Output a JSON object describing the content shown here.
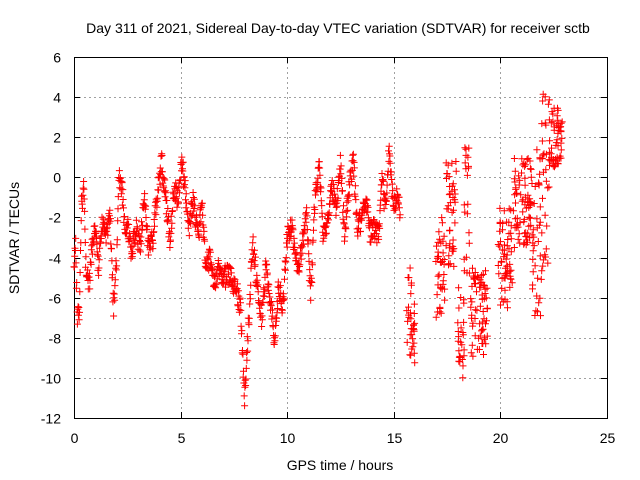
{
  "chart_data": {
    "type": "scatter",
    "title": "Day 311 of 2021, Sidereal Day-to-day VTEC variation (SDTVAR) for receiver sctb",
    "xlabel": "GPS time / hours",
    "ylabel": "SDTVAR / TECUs",
    "xlim": [
      0,
      25
    ],
    "ylim": [
      -12,
      6
    ],
    "xticks": [
      0,
      5,
      10,
      15,
      20,
      25
    ],
    "yticks": [
      -12,
      -10,
      -8,
      -6,
      -4,
      -2,
      0,
      2,
      4,
      6
    ],
    "grid": true,
    "marker": "+",
    "color": "#ff0000",
    "series": [
      {
        "name": "SDTVAR",
        "keyframes": [
          [
            0.0,
            -4.8
          ],
          [
            0.08,
            -3.5
          ],
          [
            0.15,
            -6.8
          ],
          [
            0.25,
            -7.0
          ],
          [
            0.35,
            -1.5
          ],
          [
            0.45,
            -0.5
          ],
          [
            0.55,
            -4.2
          ],
          [
            0.7,
            -5.5
          ],
          [
            0.85,
            -3.5
          ],
          [
            1.0,
            -2.5
          ],
          [
            1.15,
            -4.5
          ],
          [
            1.3,
            -2.2
          ],
          [
            1.5,
            -3.0
          ],
          [
            1.7,
            -2.0
          ],
          [
            1.85,
            -6.5
          ],
          [
            2.0,
            -4.0
          ],
          [
            2.1,
            0.2
          ],
          [
            2.25,
            -0.5
          ],
          [
            2.4,
            -3.0
          ],
          [
            2.55,
            -2.5
          ],
          [
            2.7,
            -3.8
          ],
          [
            2.9,
            -2.5
          ],
          [
            3.1,
            -3.5
          ],
          [
            3.3,
            -1.2
          ],
          [
            3.5,
            -3.5
          ],
          [
            3.7,
            -3.0
          ],
          [
            3.9,
            -1.0
          ],
          [
            4.1,
            0.8
          ],
          [
            4.3,
            -1.0
          ],
          [
            4.5,
            -3.0
          ],
          [
            4.7,
            -0.5
          ],
          [
            4.9,
            -1.2
          ],
          [
            5.05,
            0.9
          ],
          [
            5.2,
            -0.5
          ],
          [
            5.4,
            -2.5
          ],
          [
            5.6,
            -1.0
          ],
          [
            5.8,
            -3.0
          ],
          [
            6.0,
            -1.5
          ],
          [
            6.2,
            -4.5
          ],
          [
            6.4,
            -4.0
          ],
          [
            6.6,
            -5.5
          ],
          [
            6.8,
            -4.5
          ],
          [
            7.0,
            -5.0
          ],
          [
            7.3,
            -4.8
          ],
          [
            7.6,
            -5.5
          ],
          [
            7.8,
            -6.5
          ],
          [
            8.0,
            -11.0
          ],
          [
            8.1,
            -9.0
          ],
          [
            8.25,
            -6.0
          ],
          [
            8.4,
            -3.2
          ],
          [
            8.6,
            -5.5
          ],
          [
            8.8,
            -7.0
          ],
          [
            9.0,
            -4.5
          ],
          [
            9.2,
            -6.0
          ],
          [
            9.4,
            -8.0
          ],
          [
            9.6,
            -5.5
          ],
          [
            9.8,
            -6.5
          ],
          [
            10.0,
            -3.0
          ],
          [
            10.2,
            -2.5
          ],
          [
            10.5,
            -4.5
          ],
          [
            10.7,
            -3.5
          ],
          [
            10.9,
            -1.5
          ],
          [
            11.1,
            -6.0
          ],
          [
            11.3,
            -1.0
          ],
          [
            11.5,
            0.5
          ],
          [
            11.7,
            -3.0
          ],
          [
            11.9,
            -2.0
          ],
          [
            12.1,
            -0.5
          ],
          [
            12.3,
            -1.5
          ],
          [
            12.5,
            0.8
          ],
          [
            12.7,
            -3.0
          ],
          [
            12.9,
            -0.5
          ],
          [
            13.1,
            0.8
          ],
          [
            13.3,
            -2.5
          ],
          [
            13.5,
            -2.0
          ],
          [
            13.7,
            -1.0
          ],
          [
            13.9,
            -2.8
          ],
          [
            14.1,
            -2.5
          ],
          [
            14.3,
            -3.0
          ],
          [
            14.45,
            -0.2
          ],
          [
            14.6,
            -1.5
          ],
          [
            14.8,
            1.5
          ],
          [
            14.9,
            -0.5
          ],
          [
            15.0,
            -1.5
          ],
          [
            15.2,
            -0.8
          ],
          [
            15.3,
            -2.0
          ]
        ],
        "gaps": [
          [
            15.35,
            15.55
          ],
          [
            16.4,
            16.9
          ],
          [
            19.45,
            19.9
          ]
        ],
        "clusters": [
          {
            "x": [
              15.6,
              16.0
            ],
            "y": [
              -9.5,
              -4.5
            ]
          },
          {
            "x": [
              16.95,
              17.4
            ],
            "y": [
              -7.0,
              -2.0
            ]
          },
          {
            "x": [
              17.45,
              17.95
            ],
            "y": [
              -4.5,
              0.8
            ]
          },
          {
            "x": [
              18.0,
              18.3
            ],
            "y": [
              -10.0,
              -5.0
            ]
          },
          {
            "x": [
              18.3,
              18.55
            ],
            "y": [
              -5.0,
              1.5
            ]
          },
          {
            "x": [
              18.6,
              19.4
            ],
            "y": [
              -9.0,
              -4.5
            ]
          },
          {
            "x": [
              19.9,
              20.6
            ],
            "y": [
              -6.5,
              -1.5
            ]
          },
          {
            "x": [
              20.6,
              21.5
            ],
            "y": [
              -3.5,
              1.0
            ]
          },
          {
            "x": [
              21.5,
              21.9
            ],
            "y": [
              -7.0,
              1.5
            ]
          },
          {
            "x": [
              21.9,
              22.3
            ],
            "y": [
              -5.5,
              4.2
            ]
          },
          {
            "x": [
              22.3,
              22.9
            ],
            "y": [
              0.5,
              3.5
            ]
          }
        ]
      }
    ]
  }
}
